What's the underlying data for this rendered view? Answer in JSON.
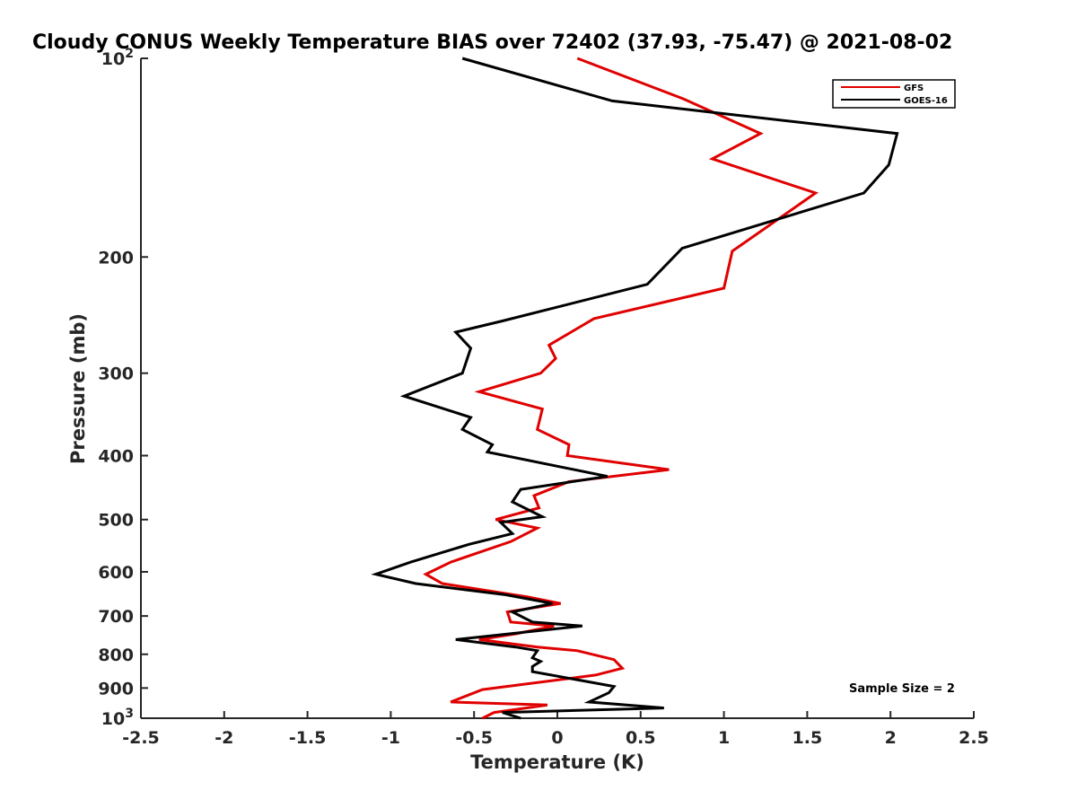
{
  "chart_data": {
    "type": "line",
    "title": "Cloudy CONUS Weekly Temperature BIAS over 72402 (37.93, -75.47) @ 2021-08-02",
    "xlabel": "Temperature (K)",
    "ylabel": "Pressure (mb)",
    "xlim": [
      -2.5,
      2.5
    ],
    "ylim": [
      100,
      1000
    ],
    "y_scale": "log",
    "y_reversed": true,
    "grid": false,
    "legend_position": "top-right",
    "x_ticks": [
      "-2.5",
      "-2",
      "-1.5",
      "-1",
      "-0.5",
      "0",
      "0.5",
      "1",
      "1.5",
      "2",
      "2.5"
    ],
    "y_ticks": [
      {
        "value": 100,
        "base": "10",
        "exp": "2"
      },
      {
        "value": 200,
        "label": "200"
      },
      {
        "value": 300,
        "label": "300"
      },
      {
        "value": 400,
        "label": "400"
      },
      {
        "value": 500,
        "label": "500"
      },
      {
        "value": 600,
        "label": "600"
      },
      {
        "value": 700,
        "label": "700"
      },
      {
        "value": 800,
        "label": "800"
      },
      {
        "value": 900,
        "label": "900"
      },
      {
        "value": 1000,
        "base": "10",
        "exp": "3"
      }
    ],
    "annotation": "Sample Size = 2",
    "series": [
      {
        "name": "GFS",
        "color": "#e00000",
        "points": [
          [
            0.12,
            100
          ],
          [
            0.75,
            115
          ],
          [
            1.22,
            130
          ],
          [
            0.93,
            142
          ],
          [
            1.55,
            160
          ],
          [
            1.05,
            196
          ],
          [
            1.0,
            223
          ],
          [
            0.22,
            248
          ],
          [
            -0.05,
            272
          ],
          [
            -0.01,
            285
          ],
          [
            -0.1,
            300
          ],
          [
            -0.47,
            320
          ],
          [
            -0.09,
            340
          ],
          [
            -0.12,
            365
          ],
          [
            0.07,
            385
          ],
          [
            0.06,
            400
          ],
          [
            0.67,
            420
          ],
          [
            0.07,
            438
          ],
          [
            -0.14,
            460
          ],
          [
            -0.11,
            480
          ],
          [
            -0.37,
            500
          ],
          [
            -0.12,
            515
          ],
          [
            -0.28,
            540
          ],
          [
            -0.64,
            580
          ],
          [
            -0.79,
            605
          ],
          [
            -0.69,
            625
          ],
          [
            -0.18,
            655
          ],
          [
            0.02,
            670
          ],
          [
            -0.3,
            690
          ],
          [
            -0.28,
            715
          ],
          [
            -0.02,
            725
          ],
          [
            -0.25,
            745
          ],
          [
            -0.47,
            760
          ],
          [
            -0.12,
            780
          ],
          [
            0.12,
            790
          ],
          [
            0.34,
            815
          ],
          [
            0.39,
            840
          ],
          [
            0.23,
            860
          ],
          [
            -0.45,
            905
          ],
          [
            -0.64,
            945
          ],
          [
            -0.06,
            955
          ],
          [
            -0.38,
            980
          ],
          [
            -0.45,
            1000
          ]
        ]
      },
      {
        "name": "GOES-16",
        "color": "#000000",
        "points": [
          [
            -0.57,
            100
          ],
          [
            0.33,
            116
          ],
          [
            2.04,
            130
          ],
          [
            1.99,
            145
          ],
          [
            1.84,
            160
          ],
          [
            0.75,
            194
          ],
          [
            0.54,
            220
          ],
          [
            -0.33,
            250
          ],
          [
            -0.61,
            260
          ],
          [
            -0.52,
            275
          ],
          [
            -0.57,
            300
          ],
          [
            -0.92,
            325
          ],
          [
            -0.52,
            350
          ],
          [
            -0.57,
            365
          ],
          [
            -0.39,
            385
          ],
          [
            -0.42,
            395
          ],
          [
            0.3,
            430
          ],
          [
            -0.22,
            450
          ],
          [
            -0.27,
            470
          ],
          [
            -0.09,
            495
          ],
          [
            -0.34,
            505
          ],
          [
            -0.27,
            525
          ],
          [
            -0.53,
            545
          ],
          [
            -0.88,
            580
          ],
          [
            -1.09,
            605
          ],
          [
            -0.85,
            625
          ],
          [
            -0.31,
            650
          ],
          [
            -0.03,
            670
          ],
          [
            -0.27,
            690
          ],
          [
            -0.15,
            715
          ],
          [
            0.15,
            725
          ],
          [
            -0.61,
            760
          ],
          [
            -0.25,
            780
          ],
          [
            -0.12,
            790
          ],
          [
            -0.15,
            810
          ],
          [
            -0.1,
            820
          ],
          [
            -0.15,
            835
          ],
          [
            -0.15,
            850
          ],
          [
            0.34,
            895
          ],
          [
            0.31,
            915
          ],
          [
            0.19,
            945
          ],
          [
            0.64,
            965
          ],
          [
            -0.33,
            980
          ],
          [
            -0.22,
            1000
          ]
        ]
      }
    ]
  }
}
